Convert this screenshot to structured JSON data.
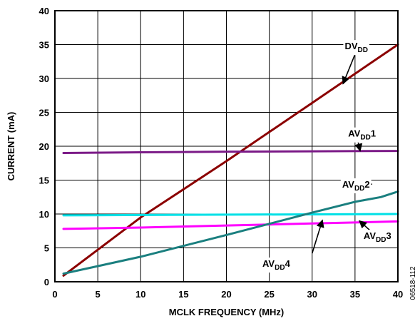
{
  "chart_data": {
    "type": "line",
    "title": "",
    "xlabel": "MCLK FREQUENCY (MHz)",
    "ylabel": "CURRENT (mA)",
    "xlim": [
      0,
      40
    ],
    "ylim": [
      0,
      40
    ],
    "x_ticks": [
      "0",
      "5",
      "10",
      "15",
      "20",
      "25",
      "30",
      "35",
      "40"
    ],
    "y_ticks": [
      "0",
      "5",
      "10",
      "15",
      "20",
      "25",
      "30",
      "35",
      "40"
    ],
    "grid": true,
    "figure_code": "06518-112",
    "series": [
      {
        "name": "DVDD",
        "label_main": "DV",
        "label_sub": "DD",
        "label_suffix": "",
        "color": "#8b0000",
        "points": [
          [
            1,
            0.9
          ],
          [
            10,
            9.5
          ],
          [
            20,
            17.8
          ],
          [
            30,
            26.4
          ],
          [
            40,
            35.0
          ]
        ]
      },
      {
        "name": "AVDD1",
        "label_main": "AV",
        "label_sub": "DD",
        "label_suffix": "1",
        "color": "#7b1a87",
        "points": [
          [
            1,
            19.0
          ],
          [
            10,
            19.1
          ],
          [
            20,
            19.2
          ],
          [
            30,
            19.25
          ],
          [
            40,
            19.3
          ]
        ]
      },
      {
        "name": "AVDD2",
        "label_main": "AV",
        "label_sub": "DD",
        "label_suffix": "2",
        "color": "#00e0e6",
        "points": [
          [
            1,
            9.8
          ],
          [
            10,
            9.85
          ],
          [
            20,
            9.9
          ],
          [
            30,
            9.95
          ],
          [
            40,
            10.0
          ]
        ]
      },
      {
        "name": "AVDD3",
        "label_main": "AV",
        "label_sub": "DD",
        "label_suffix": "3",
        "color": "#ff00ff",
        "points": [
          [
            1,
            7.8
          ],
          [
            10,
            8.0
          ],
          [
            20,
            8.3
          ],
          [
            30,
            8.6
          ],
          [
            40,
            8.9
          ]
        ]
      },
      {
        "name": "AVDD4",
        "label_main": "AV",
        "label_sub": "DD",
        "label_suffix": "4",
        "color": "#1a7f7f",
        "points": [
          [
            1,
            1.2
          ],
          [
            10,
            3.7
          ],
          [
            20,
            6.9
          ],
          [
            30,
            10.2
          ],
          [
            35,
            11.8
          ],
          [
            38,
            12.5
          ],
          [
            40,
            13.3
          ]
        ]
      }
    ],
    "annotations": [
      {
        "series": "DVDD",
        "text_pos": [
          33.8,
          34.3
        ],
        "arrow_to": [
          33.6,
          29.2
        ]
      },
      {
        "series": "AVDD1",
        "text_pos": [
          34.2,
          21.4
        ],
        "arrow_to": [
          35.6,
          19.3
        ]
      },
      {
        "series": "AVDD2",
        "text_pos": [
          33.5,
          13.9
        ],
        "arrow_from": [
          37.0,
          14.4
        ],
        "arrow_to": [
          35.3,
          14.4
        ]
      },
      {
        "series": "AVDD3",
        "text_pos": [
          36.0,
          6.3
        ],
        "arrow_from": [
          36.9,
          7.4
        ],
        "arrow_to": [
          35.5,
          9.0
        ]
      },
      {
        "series": "AVDD4",
        "text_pos": [
          24.2,
          2.2
        ],
        "arrow_from": [
          30.0,
          4.2
        ],
        "arrow_to": [
          31.2,
          9.1
        ]
      }
    ]
  }
}
